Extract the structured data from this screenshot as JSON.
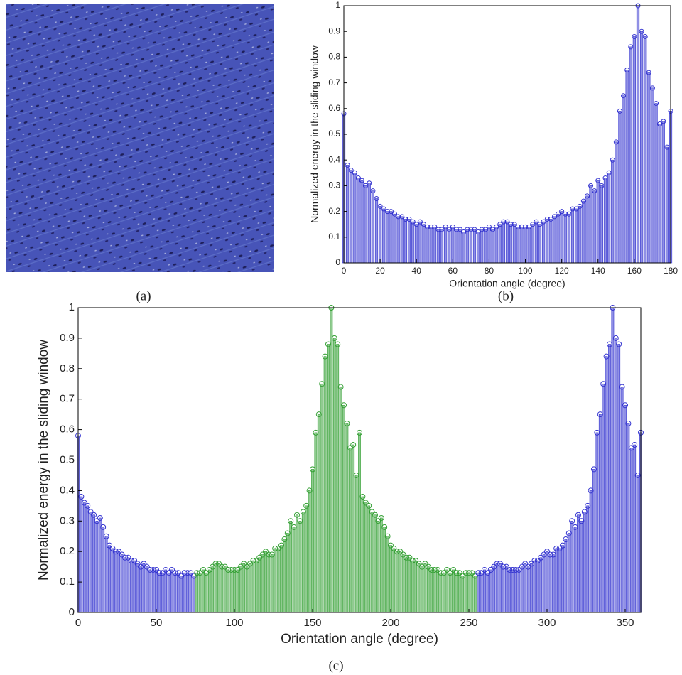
{
  "image_panel": {
    "label": "(a)"
  },
  "chart_data": [
    {
      "type": "stem",
      "panel_label": "(b)",
      "xlabel": "Orientation angle (degree)",
      "ylabel": "Normalized energy in the sliding window",
      "xlim": [
        0,
        180
      ],
      "ylim": [
        0,
        1
      ],
      "xticks": [
        0,
        20,
        40,
        60,
        80,
        100,
        120,
        140,
        160,
        180
      ],
      "yticks": [
        0,
        0.1,
        0.2,
        0.3,
        0.4,
        0.5,
        0.6,
        0.7,
        0.8,
        0.9,
        1
      ],
      "series": [
        {
          "color": "#3535d0",
          "x": [
            0,
            2,
            4,
            6,
            8,
            10,
            12,
            14,
            16,
            18,
            20,
            22,
            24,
            26,
            28,
            30,
            32,
            34,
            36,
            38,
            40,
            42,
            44,
            46,
            48,
            50,
            52,
            54,
            56,
            58,
            60,
            62,
            64,
            66,
            68,
            70,
            72,
            74,
            76,
            78,
            80,
            82,
            84,
            86,
            88,
            90,
            92,
            94,
            96,
            98,
            100,
            102,
            104,
            106,
            108,
            110,
            112,
            114,
            116,
            118,
            120,
            122,
            124,
            126,
            128,
            130,
            132,
            134,
            136,
            138,
            140,
            142,
            144,
            146,
            148,
            150,
            152,
            154,
            156,
            158,
            160,
            162,
            164,
            166,
            168,
            170,
            172,
            174,
            176,
            178,
            180
          ],
          "values": [
            0.58,
            0.38,
            0.36,
            0.35,
            0.33,
            0.32,
            0.3,
            0.31,
            0.28,
            0.25,
            0.22,
            0.21,
            0.2,
            0.2,
            0.19,
            0.18,
            0.18,
            0.17,
            0.17,
            0.16,
            0.15,
            0.16,
            0.15,
            0.14,
            0.14,
            0.14,
            0.13,
            0.13,
            0.14,
            0.13,
            0.14,
            0.13,
            0.13,
            0.12,
            0.13,
            0.13,
            0.13,
            0.12,
            0.13,
            0.13,
            0.14,
            0.13,
            0.14,
            0.15,
            0.16,
            0.16,
            0.15,
            0.15,
            0.14,
            0.14,
            0.14,
            0.14,
            0.15,
            0.16,
            0.15,
            0.16,
            0.17,
            0.17,
            0.18,
            0.19,
            0.2,
            0.19,
            0.19,
            0.21,
            0.21,
            0.22,
            0.24,
            0.26,
            0.3,
            0.28,
            0.32,
            0.3,
            0.33,
            0.35,
            0.4,
            0.47,
            0.59,
            0.65,
            0.75,
            0.84,
            0.88,
            1.0,
            0.9,
            0.88,
            0.74,
            0.68,
            0.62,
            0.54,
            0.55,
            0.45,
            0.59
          ]
        }
      ]
    },
    {
      "type": "stem",
      "panel_label": "(c)",
      "xlabel": "Orientation angle (degree)",
      "ylabel": "Normalized energy in the sliding window",
      "xlim": [
        0,
        360
      ],
      "ylim": [
        0,
        1
      ],
      "xticks": [
        0,
        50,
        100,
        150,
        200,
        250,
        300,
        350
      ],
      "yticks": [
        0,
        0.1,
        0.2,
        0.3,
        0.4,
        0.5,
        0.6,
        0.7,
        0.8,
        0.9,
        1
      ],
      "series": [
        {
          "color": "#3535d0",
          "x": [
            0,
            2,
            4,
            6,
            8,
            10,
            12,
            14,
            16,
            18,
            20,
            22,
            24,
            26,
            28,
            30,
            32,
            34,
            36,
            38,
            40,
            42,
            44,
            46,
            48,
            50,
            52,
            54,
            56,
            58,
            60,
            62,
            64,
            66,
            68,
            70,
            72,
            74
          ],
          "values": [
            0.58,
            0.38,
            0.36,
            0.35,
            0.33,
            0.32,
            0.3,
            0.31,
            0.28,
            0.25,
            0.22,
            0.21,
            0.2,
            0.2,
            0.19,
            0.18,
            0.18,
            0.17,
            0.17,
            0.16,
            0.15,
            0.16,
            0.15,
            0.14,
            0.14,
            0.14,
            0.13,
            0.13,
            0.14,
            0.13,
            0.14,
            0.13,
            0.13,
            0.12,
            0.13,
            0.13,
            0.13,
            0.12
          ]
        },
        {
          "color": "#35a035",
          "x": [
            76,
            78,
            80,
            82,
            84,
            86,
            88,
            90,
            92,
            94,
            96,
            98,
            100,
            102,
            104,
            106,
            108,
            110,
            112,
            114,
            116,
            118,
            120,
            122,
            124,
            126,
            128,
            130,
            132,
            134,
            136,
            138,
            140,
            142,
            144,
            146,
            148,
            150,
            152,
            154,
            156,
            158,
            160,
            162,
            164,
            166,
            168,
            170,
            172,
            174,
            176,
            178,
            180,
            182,
            184,
            186,
            188,
            190,
            192,
            194,
            196,
            198,
            200,
            202,
            204,
            206,
            208,
            210,
            212,
            214,
            216,
            218,
            220,
            222,
            224,
            226,
            228,
            230,
            232,
            234,
            236,
            238,
            240,
            242,
            244,
            246,
            248,
            250,
            252,
            254
          ],
          "values": [
            0.13,
            0.13,
            0.14,
            0.13,
            0.14,
            0.15,
            0.16,
            0.16,
            0.15,
            0.15,
            0.14,
            0.14,
            0.14,
            0.14,
            0.15,
            0.16,
            0.15,
            0.16,
            0.17,
            0.17,
            0.18,
            0.19,
            0.2,
            0.19,
            0.19,
            0.21,
            0.21,
            0.22,
            0.24,
            0.26,
            0.3,
            0.28,
            0.32,
            0.3,
            0.33,
            0.35,
            0.4,
            0.47,
            0.59,
            0.65,
            0.75,
            0.84,
            0.88,
            1.0,
            0.9,
            0.88,
            0.74,
            0.68,
            0.62,
            0.54,
            0.55,
            0.45,
            0.59,
            0.38,
            0.36,
            0.35,
            0.33,
            0.32,
            0.3,
            0.31,
            0.28,
            0.25,
            0.22,
            0.21,
            0.2,
            0.2,
            0.19,
            0.18,
            0.18,
            0.17,
            0.17,
            0.16,
            0.15,
            0.16,
            0.15,
            0.14,
            0.14,
            0.14,
            0.13,
            0.13,
            0.14,
            0.13,
            0.14,
            0.13,
            0.13,
            0.12,
            0.13,
            0.13,
            0.13,
            0.12
          ]
        },
        {
          "color": "#3535d0",
          "x": [
            256,
            258,
            260,
            262,
            264,
            266,
            268,
            270,
            272,
            274,
            276,
            278,
            280,
            282,
            284,
            286,
            288,
            290,
            292,
            294,
            296,
            298,
            300,
            302,
            304,
            306,
            308,
            310,
            312,
            314,
            316,
            318,
            320,
            322,
            324,
            326,
            328,
            330,
            332,
            334,
            336,
            338,
            340,
            342,
            344,
            346,
            348,
            350,
            352,
            354,
            356,
            358,
            360
          ],
          "values": [
            0.13,
            0.13,
            0.14,
            0.13,
            0.14,
            0.15,
            0.16,
            0.16,
            0.15,
            0.15,
            0.14,
            0.14,
            0.14,
            0.14,
            0.15,
            0.16,
            0.15,
            0.16,
            0.17,
            0.17,
            0.18,
            0.19,
            0.2,
            0.19,
            0.19,
            0.21,
            0.21,
            0.22,
            0.24,
            0.26,
            0.3,
            0.28,
            0.32,
            0.3,
            0.33,
            0.35,
            0.4,
            0.47,
            0.59,
            0.65,
            0.75,
            0.84,
            0.88,
            1.0,
            0.9,
            0.88,
            0.74,
            0.68,
            0.62,
            0.54,
            0.55,
            0.45,
            0.59
          ]
        }
      ]
    }
  ]
}
